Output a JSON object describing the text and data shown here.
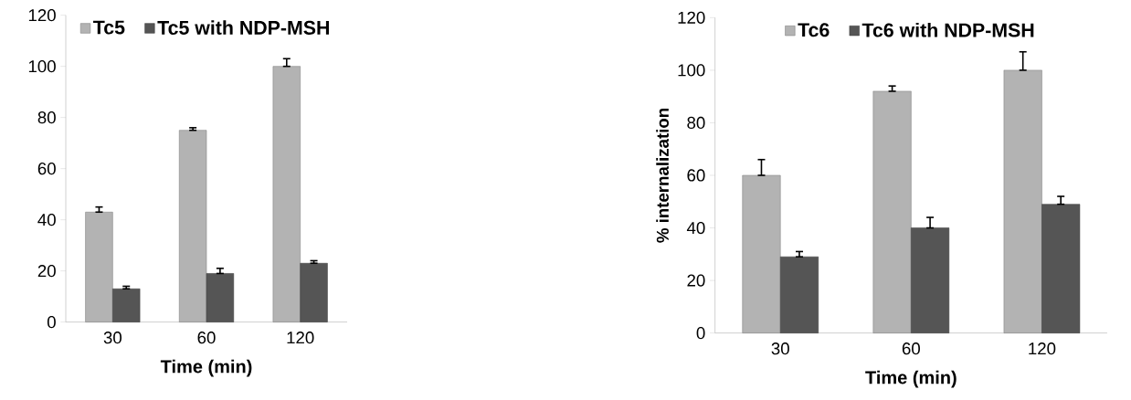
{
  "chart_data": [
    {
      "type": "bar",
      "categories": [
        "30",
        "60",
        "120"
      ],
      "xlabel": "Time (min)",
      "ylim": [
        0,
        120
      ],
      "yticks": [
        0,
        20,
        40,
        60,
        80,
        100,
        120
      ],
      "legend": "top",
      "series": [
        {
          "name": "Tc5",
          "color": "#b3b3b3",
          "values": [
            43,
            75,
            100
          ],
          "errors": [
            [
              43,
              45
            ],
            [
              75,
              76
            ],
            [
              100,
              103
            ]
          ]
        },
        {
          "name": "Tc5 with NDP-MSH",
          "color": "#555555",
          "values": [
            13,
            19,
            23
          ],
          "errors": [
            [
              13,
              14
            ],
            [
              19,
              21
            ],
            [
              23,
              24
            ]
          ]
        }
      ]
    },
    {
      "type": "bar",
      "categories": [
        "30",
        "60",
        "120"
      ],
      "xlabel": "Time (min)",
      "ylabel": "% internalization",
      "ylim": [
        0,
        120
      ],
      "yticks": [
        0,
        20,
        40,
        60,
        80,
        100,
        120
      ],
      "legend": "top",
      "series": [
        {
          "name": "Tc6",
          "color": "#b3b3b3",
          "values": [
            60,
            92,
            100
          ],
          "errors": [
            [
              60,
              66
            ],
            [
              92,
              94
            ],
            [
              100,
              107
            ]
          ]
        },
        {
          "name": "Tc6 with NDP-MSH",
          "color": "#555555",
          "values": [
            29,
            40,
            49
          ],
          "errors": [
            [
              29,
              31
            ],
            [
              40,
              44
            ],
            [
              49,
              52
            ]
          ]
        }
      ]
    }
  ]
}
